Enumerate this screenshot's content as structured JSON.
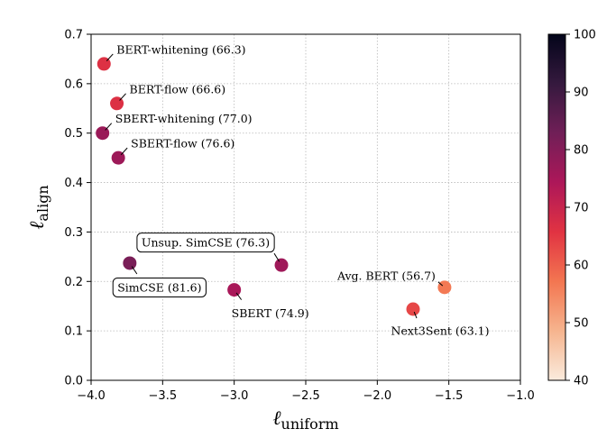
{
  "chart_data": {
    "type": "scatter",
    "xlabel": {
      "main": "ℓ",
      "sub": "uniform"
    },
    "ylabel": {
      "main": "ℓ",
      "sub": "align"
    },
    "xlim": [
      -4.0,
      -1.0
    ],
    "ylim": [
      0.0,
      0.7
    ],
    "xticks": [
      -4.0,
      -3.5,
      -3.0,
      -2.5,
      -2.0,
      -1.5,
      -1.0
    ],
    "xtick_labels": [
      "−4.0",
      "−3.5",
      "−3.0",
      "−2.5",
      "−2.0",
      "−1.5",
      "−1.0"
    ],
    "yticks": [
      0.0,
      0.1,
      0.2,
      0.3,
      0.4,
      0.5,
      0.6,
      0.7
    ],
    "ytick_labels": [
      "0.0",
      "0.1",
      "0.2",
      "0.3",
      "0.4",
      "0.5",
      "0.6",
      "0.7"
    ],
    "grid": true,
    "colorbar": {
      "range": [
        40,
        100
      ],
      "ticks": [
        40,
        50,
        60,
        70,
        80,
        90,
        100
      ],
      "tick_labels": [
        "40",
        "50",
        "60",
        "70",
        "80",
        "90",
        "100"
      ],
      "colormap": "rocket_r",
      "stops": [
        "#faebdd",
        "#f6b48e",
        "#f37651",
        "#e13342",
        "#ad1759",
        "#701f57",
        "#35193e",
        "#03051a"
      ]
    },
    "points": [
      {
        "name": "BERT-whitening",
        "label": "BERT-whitening (66.3)",
        "x": -3.91,
        "y": 0.64,
        "score": 66.3,
        "boxed": false
      },
      {
        "name": "BERT-flow",
        "label": "BERT-flow (66.6)",
        "x": -3.82,
        "y": 0.56,
        "score": 66.6,
        "boxed": false
      },
      {
        "name": "SBERT-whitening",
        "label": "SBERT-whitening (77.0)",
        "x": -3.92,
        "y": 0.5,
        "score": 77.0,
        "boxed": false
      },
      {
        "name": "SBERT-flow",
        "label": "SBERT-flow (76.6)",
        "x": -3.81,
        "y": 0.45,
        "score": 76.6,
        "boxed": false
      },
      {
        "name": "Unsup. SimCSE",
        "label": "Unsup. SimCSE (76.3)",
        "x": -2.67,
        "y": 0.233,
        "score": 76.3,
        "boxed": true
      },
      {
        "name": "SimCSE",
        "label": "SimCSE (81.6)",
        "x": -3.73,
        "y": 0.237,
        "score": 81.6,
        "boxed": true
      },
      {
        "name": "SBERT",
        "label": "SBERT (74.9)",
        "x": -3.0,
        "y": 0.183,
        "score": 74.9,
        "boxed": false
      },
      {
        "name": "Avg. BERT",
        "label": "Avg. BERT (56.7)",
        "x": -1.53,
        "y": 0.188,
        "score": 56.7,
        "boxed": false
      },
      {
        "name": "Next3Sent",
        "label": "Next3Sent (63.1)",
        "x": -1.75,
        "y": 0.144,
        "score": 63.1,
        "boxed": false
      }
    ]
  }
}
